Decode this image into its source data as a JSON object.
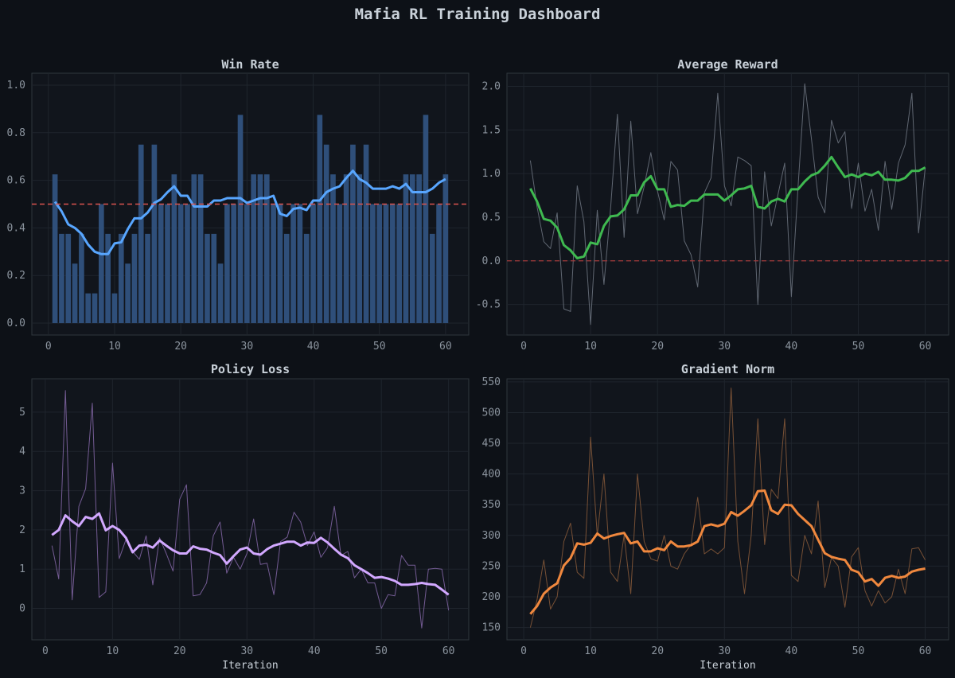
{
  "dashboard": {
    "title": "Mafia RL Training Dashboard"
  },
  "chart_data": [
    {
      "id": "win",
      "type": "bar",
      "title": "Win Rate",
      "xlabel": "",
      "xlim": [
        -2.5,
        63.5
      ],
      "ylim": [
        -0.05,
        1.05
      ],
      "xticks": [
        0,
        10,
        20,
        30,
        40,
        50,
        60
      ],
      "yticks": [
        0.0,
        0.2,
        0.4,
        0.6,
        0.8,
        1.0
      ],
      "ytick_labels": [
        "0.0",
        "0.2",
        "0.4",
        "0.6",
        "0.8",
        "1.0"
      ],
      "colors": {
        "bar": "#2f4f7a",
        "smooth": "#58a6ff",
        "reference": "#d9534f"
      },
      "reference_line": 0.5,
      "x": [
        1,
        2,
        3,
        4,
        5,
        6,
        7,
        8,
        9,
        10,
        11,
        12,
        13,
        14,
        15,
        16,
        17,
        18,
        19,
        20,
        21,
        22,
        23,
        24,
        25,
        26,
        27,
        28,
        29,
        30,
        31,
        32,
        33,
        34,
        35,
        36,
        37,
        38,
        39,
        40,
        41,
        42,
        43,
        44,
        45,
        46,
        47,
        48,
        49,
        50,
        51,
        52,
        53,
        54,
        55,
        56,
        57,
        58,
        59,
        60
      ],
      "series": [
        {
          "name": "win rate",
          "style": "bar",
          "values": [
            0.625,
            0.375,
            0.375,
            0.25,
            0.375,
            0.125,
            0.125,
            0.5,
            0.375,
            0.125,
            0.375,
            0.25,
            0.375,
            0.75,
            0.375,
            0.75,
            0.5,
            0.5,
            0.625,
            0.5,
            0.5,
            0.625,
            0.625,
            0.375,
            0.375,
            0.25,
            0.5,
            0.5,
            0.875,
            0.5,
            0.625,
            0.625,
            0.625,
            0.5,
            0.5,
            0.375,
            0.5,
            0.5,
            0.375,
            0.5,
            0.875,
            0.75,
            0.625,
            0.5,
            0.625,
            0.75,
            0.625,
            0.75,
            0.5,
            0.5,
            0.5,
            0.5,
            0.5,
            0.625,
            0.625,
            0.625,
            0.875,
            0.375,
            0.5,
            0.625
          ]
        },
        {
          "name": "moving average",
          "style": "smooth",
          "values": [
            0.51,
            0.47,
            0.415,
            0.4,
            0.375,
            0.33,
            0.3,
            0.29,
            0.29,
            0.335,
            0.34,
            0.395,
            0.44,
            0.44,
            0.465,
            0.505,
            0.52,
            0.55,
            0.575,
            0.535,
            0.535,
            0.49,
            0.49,
            0.49,
            0.515,
            0.515,
            0.525,
            0.525,
            0.525,
            0.505,
            0.515,
            0.525,
            0.525,
            0.535,
            0.46,
            0.45,
            0.48,
            0.485,
            0.475,
            0.515,
            0.515,
            0.55,
            0.565,
            0.575,
            0.61,
            0.64,
            0.605,
            0.59,
            0.565,
            0.565,
            0.565,
            0.575,
            0.565,
            0.585,
            0.55,
            0.55,
            0.55,
            0.565,
            0.59,
            0.605
          ]
        }
      ]
    },
    {
      "id": "reward",
      "type": "line",
      "title": "Average Reward",
      "xlabel": "",
      "xlim": [
        -2.5,
        63.5
      ],
      "ylim": [
        -0.85,
        2.15
      ],
      "xticks": [
        0,
        10,
        20,
        30,
        40,
        50,
        60
      ],
      "yticks": [
        -0.5,
        0.0,
        0.5,
        1.0,
        1.5,
        2.0
      ],
      "ytick_labels": [
        "-0.5",
        "0.0",
        "0.5",
        "1.0",
        "1.5",
        "2.0"
      ],
      "colors": {
        "raw": "#6e7681",
        "smooth": "#3fb950",
        "reference": "#a33a3a"
      },
      "reference_line": 0.0,
      "x": [
        1,
        2,
        3,
        4,
        5,
        6,
        7,
        8,
        9,
        10,
        11,
        12,
        13,
        14,
        15,
        16,
        17,
        18,
        19,
        20,
        21,
        22,
        23,
        24,
        25,
        26,
        27,
        28,
        29,
        30,
        31,
        32,
        33,
        34,
        35,
        36,
        37,
        38,
        39,
        40,
        41,
        42,
        43,
        44,
        45,
        46,
        47,
        48,
        49,
        50,
        51,
        52,
        53,
        54,
        55,
        56,
        57,
        58,
        59,
        60
      ],
      "series": [
        {
          "name": "raw",
          "style": "raw",
          "values": [
            1.15,
            0.62,
            0.22,
            0.14,
            0.55,
            -0.55,
            -0.58,
            0.86,
            0.45,
            -0.73,
            0.58,
            -0.27,
            0.61,
            1.68,
            0.27,
            1.6,
            0.54,
            0.85,
            1.24,
            0.8,
            0.47,
            1.14,
            1.04,
            0.23,
            0.07,
            -0.3,
            0.78,
            0.95,
            1.92,
            0.86,
            0.63,
            1.19,
            1.15,
            1.09,
            -0.5,
            1.02,
            0.4,
            0.76,
            1.12,
            -0.41,
            0.85,
            2.03,
            1.4,
            0.73,
            0.55,
            1.61,
            1.35,
            1.48,
            0.6,
            1.12,
            0.57,
            0.82,
            0.35,
            1.14,
            0.59,
            1.12,
            1.33,
            1.92,
            0.32,
            1.07
          ]
        },
        {
          "name": "moving average",
          "style": "smooth",
          "values": [
            0.83,
            0.68,
            0.48,
            0.46,
            0.38,
            0.18,
            0.12,
            0.03,
            0.05,
            0.21,
            0.19,
            0.4,
            0.51,
            0.52,
            0.59,
            0.75,
            0.75,
            0.9,
            0.97,
            0.82,
            0.82,
            0.62,
            0.64,
            0.63,
            0.69,
            0.69,
            0.76,
            0.76,
            0.76,
            0.69,
            0.75,
            0.82,
            0.83,
            0.86,
            0.62,
            0.6,
            0.68,
            0.71,
            0.68,
            0.82,
            0.82,
            0.91,
            0.98,
            1.01,
            1.09,
            1.19,
            1.07,
            0.96,
            0.99,
            0.96,
            1.0,
            0.98,
            1.02,
            0.93,
            0.93,
            0.92,
            0.95,
            1.03,
            1.03,
            1.07
          ]
        }
      ]
    },
    {
      "id": "loss",
      "type": "line",
      "title": "Policy Loss",
      "xlabel": "Iteration",
      "xlim": [
        -2.0,
        63.0
      ],
      "ylim": [
        -0.8,
        5.85
      ],
      "xticks": [
        0,
        10,
        20,
        30,
        40,
        50,
        60
      ],
      "yticks": [
        0,
        1,
        2,
        3,
        4,
        5
      ],
      "ytick_labels": [
        "0",
        "1",
        "2",
        "3",
        "4",
        "5"
      ],
      "colors": {
        "raw": "#8567a8",
        "smooth": "#d2a8ff"
      },
      "x": [
        1,
        2,
        3,
        4,
        5,
        6,
        7,
        8,
        9,
        10,
        11,
        12,
        13,
        14,
        15,
        16,
        17,
        18,
        19,
        20,
        21,
        22,
        23,
        24,
        25,
        26,
        27,
        28,
        29,
        30,
        31,
        32,
        33,
        34,
        35,
        36,
        37,
        38,
        39,
        40,
        41,
        42,
        43,
        44,
        45,
        46,
        47,
        48,
        49,
        50,
        51,
        52,
        53,
        54,
        55,
        56,
        57,
        58,
        59,
        60
      ],
      "series": [
        {
          "name": "raw",
          "style": "raw",
          "values": [
            1.6,
            0.75,
            5.55,
            0.22,
            2.6,
            3.05,
            5.23,
            0.28,
            0.42,
            3.7,
            1.27,
            1.75,
            1.45,
            1.25,
            1.85,
            0.6,
            1.8,
            1.4,
            0.95,
            2.78,
            3.15,
            0.32,
            0.35,
            0.65,
            1.85,
            2.2,
            0.9,
            1.3,
            1.0,
            1.4,
            2.28,
            1.12,
            1.15,
            0.35,
            1.7,
            1.82,
            2.45,
            2.2,
            1.6,
            1.95,
            1.3,
            1.55,
            2.6,
            1.35,
            1.45,
            0.78,
            1.0,
            0.65,
            0.65,
            0.0,
            0.35,
            0.32,
            1.35,
            1.1,
            1.1,
            -0.5,
            1.0,
            1.02,
            1.0,
            -0.05
          ]
        },
        {
          "name": "moving average",
          "style": "smooth",
          "values": [
            1.87,
            2.0,
            2.37,
            2.22,
            2.1,
            2.33,
            2.28,
            2.42,
            1.99,
            2.1,
            2.0,
            1.8,
            1.43,
            1.6,
            1.62,
            1.55,
            1.73,
            1.6,
            1.48,
            1.4,
            1.4,
            1.58,
            1.52,
            1.5,
            1.42,
            1.36,
            1.14,
            1.33,
            1.5,
            1.55,
            1.4,
            1.37,
            1.51,
            1.6,
            1.65,
            1.7,
            1.7,
            1.6,
            1.68,
            1.67,
            1.8,
            1.68,
            1.52,
            1.37,
            1.28,
            1.1,
            1.0,
            0.9,
            0.78,
            0.8,
            0.76,
            0.7,
            0.6,
            0.6,
            0.62,
            0.65,
            0.62,
            0.6,
            0.48,
            0.35
          ]
        }
      ]
    },
    {
      "id": "grad",
      "type": "line",
      "title": "Gradient Norm",
      "xlabel": "Iteration",
      "xlim": [
        -2.5,
        63.5
      ],
      "ylim": [
        130,
        555
      ],
      "xticks": [
        0,
        10,
        20,
        30,
        40,
        50,
        60
      ],
      "yticks": [
        150,
        200,
        250,
        300,
        350,
        400,
        450,
        500,
        550
      ],
      "ytick_labels": [
        "150",
        "200",
        "250",
        "300",
        "350",
        "400",
        "450",
        "500",
        "550"
      ],
      "colors": {
        "raw": "#8a5a3a",
        "smooth": "#f0883e"
      },
      "x": [
        1,
        2,
        3,
        4,
        5,
        6,
        7,
        8,
        9,
        10,
        11,
        12,
        13,
        14,
        15,
        16,
        17,
        18,
        19,
        20,
        21,
        22,
        23,
        24,
        25,
        26,
        27,
        28,
        29,
        30,
        31,
        32,
        33,
        34,
        35,
        36,
        37,
        38,
        39,
        40,
        41,
        42,
        43,
        44,
        45,
        46,
        47,
        48,
        49,
        50,
        51,
        52,
        53,
        54,
        55,
        56,
        57,
        58,
        59,
        60
      ],
      "series": [
        {
          "name": "raw",
          "style": "raw",
          "values": [
            150,
            195,
            260,
            180,
            200,
            290,
            320,
            240,
            230,
            460,
            300,
            400,
            240,
            225,
            300,
            205,
            400,
            290,
            262,
            258,
            300,
            250,
            245,
            270,
            285,
            362,
            270,
            278,
            270,
            280,
            540,
            290,
            205,
            300,
            490,
            285,
            375,
            360,
            490,
            235,
            225,
            300,
            270,
            356,
            215,
            264,
            250,
            183,
            265,
            280,
            210,
            185,
            210,
            190,
            200,
            245,
            205,
            278,
            280,
            260
          ]
        },
        {
          "name": "moving average",
          "style": "smooth",
          "values": [
            172,
            185,
            205,
            215,
            222,
            251,
            263,
            287,
            285,
            288,
            303,
            295,
            299,
            302,
            304,
            287,
            290,
            274,
            274,
            279,
            276,
            290,
            282,
            282,
            284,
            290,
            315,
            318,
            315,
            319,
            338,
            332,
            340,
            349,
            372,
            373,
            341,
            335,
            350,
            349,
            335,
            325,
            315,
            293,
            271,
            265,
            262,
            260,
            244,
            240,
            225,
            229,
            218,
            231,
            234,
            231,
            233,
            241,
            244,
            246
          ]
        }
      ]
    }
  ]
}
